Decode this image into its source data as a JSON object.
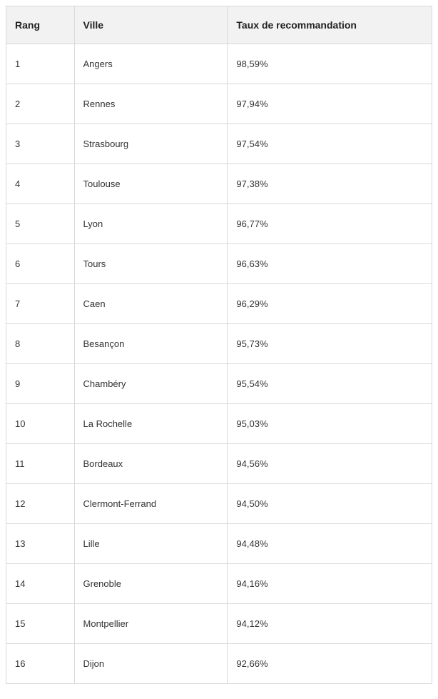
{
  "table": {
    "columns": [
      "Rang",
      "Ville",
      "Taux de recommandation"
    ],
    "rows": [
      [
        "1",
        "Angers",
        "98,59%"
      ],
      [
        "2",
        "Rennes",
        "97,94%"
      ],
      [
        "3",
        "Strasbourg",
        "97,54%"
      ],
      [
        "4",
        "Toulouse",
        "97,38%"
      ],
      [
        "5",
        "Lyon",
        "96,77%"
      ],
      [
        "6",
        "Tours",
        "96,63%"
      ],
      [
        "7",
        "Caen",
        "96,29%"
      ],
      [
        "8",
        "Besançon",
        "95,73%"
      ],
      [
        "9",
        "Chambéry",
        "95,54%"
      ],
      [
        "10",
        "La Rochelle",
        "95,03%"
      ],
      [
        "11",
        "Bordeaux",
        "94,56%"
      ],
      [
        "12",
        "Clermont-Ferrand",
        "94,50%"
      ],
      [
        "13",
        "Lille",
        "94,48%"
      ],
      [
        "14",
        "Grenoble",
        "94,16%"
      ],
      [
        "15",
        "Montpellier",
        "94,12%"
      ],
      [
        "16",
        "Dijon",
        "92,66%"
      ]
    ]
  }
}
